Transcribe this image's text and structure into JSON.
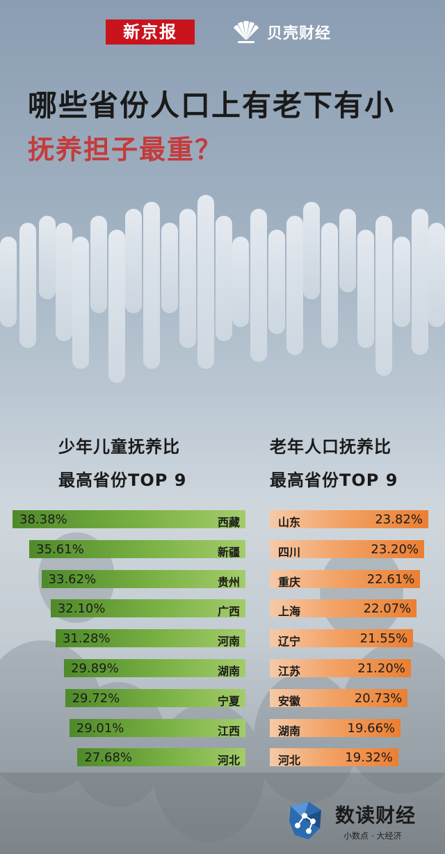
{
  "header": {
    "logo_left": "新京报",
    "logo_right": "贝壳财经"
  },
  "title": {
    "line1": "哪些省份人口上有老下有小",
    "line2": "抚养担子最重？"
  },
  "colors": {
    "title_accent": "#c43b3b",
    "green_bar": "#7ab144",
    "orange_bar": "#f2a266",
    "brand_red": "#c9141d"
  },
  "chart_data": [
    {
      "type": "bar",
      "title": "少年儿童抚养比",
      "subtitle": "最高省份TOP 9",
      "orientation": "horizontal",
      "unit": "%",
      "categories": [
        "西藏",
        "新疆",
        "贵州",
        "广西",
        "河南",
        "湖南",
        "宁夏",
        "江西",
        "河北"
      ],
      "values": [
        38.38,
        35.61,
        33.62,
        32.1,
        31.28,
        29.89,
        29.72,
        29.01,
        27.68
      ],
      "labels": [
        "38.38%",
        "35.61%",
        "33.62%",
        "32.10%",
        "31.28%",
        "29.89%",
        "29.72%",
        "29.01%",
        "27.68%"
      ],
      "color": "#7ab144",
      "bar_anchor": "right"
    },
    {
      "type": "bar",
      "title": "老年人口抚养比",
      "subtitle": "最高省份TOP 9",
      "orientation": "horizontal",
      "unit": "%",
      "categories": [
        "山东",
        "四川",
        "重庆",
        "上海",
        "辽宁",
        "江苏",
        "安徽",
        "湖南",
        "河北"
      ],
      "values": [
        23.82,
        23.2,
        22.61,
        22.07,
        21.55,
        21.2,
        20.73,
        19.66,
        19.32
      ],
      "labels": [
        "23.82%",
        "23.20%",
        "22.61%",
        "22.07%",
        "21.55%",
        "21.20%",
        "20.73%",
        "19.66%",
        "19.32%"
      ],
      "color": "#f2a266",
      "bar_anchor": "left"
    }
  ],
  "footer": {
    "brand": "数读财经",
    "tagline": "小数点 · 大经济",
    "icon": "map-logo-icon"
  }
}
